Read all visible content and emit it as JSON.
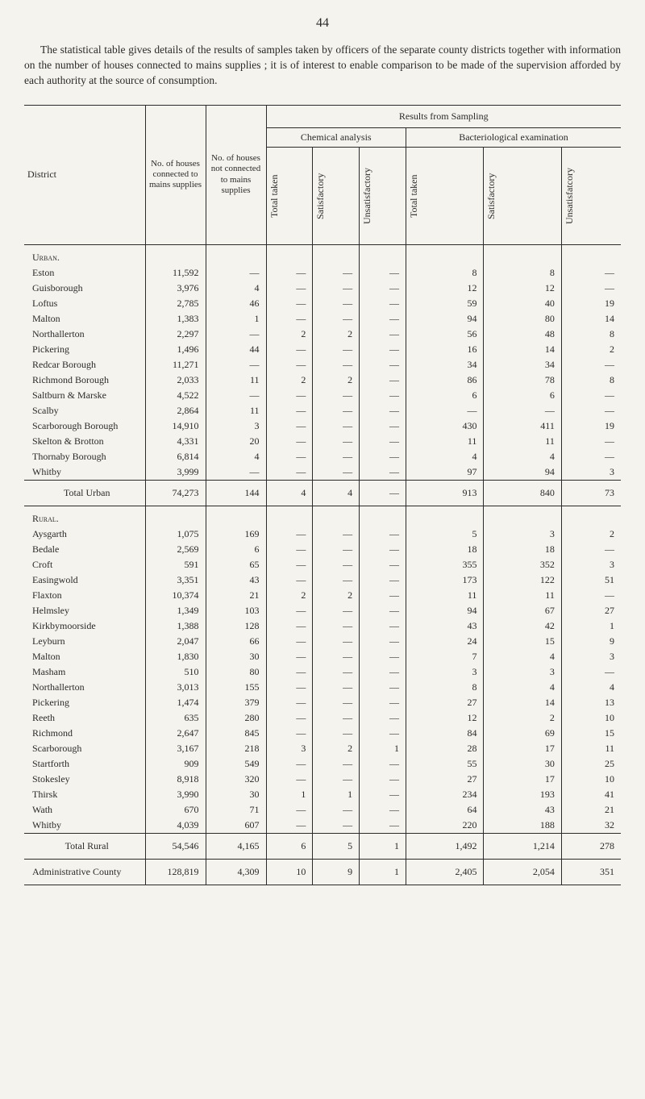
{
  "page_number": "44",
  "intro_text": "The statistical table gives details of the results of samples taken by officers of the separate county districts together with information on the number of houses connected to mains supplies ; it is of interest to enable comparison to be made of the supervision afforded by each authority at the source of consumption.",
  "table": {
    "headers": {
      "district": "District",
      "houses_connected": "No. of houses connected to mains supplies",
      "houses_not_connected": "No. of houses not connected to mains supplies",
      "results_sampling": "Results from Sampling",
      "chemical_analysis": "Chemical analysis",
      "bacteriological_examination": "Bacteriological examination",
      "total_taken": "Total taken",
      "satisfactory": "Satisfactory",
      "unsatisfactory": "Unsatisfactory",
      "unsatisfatcory": "Unsatisfatcory"
    },
    "sections": {
      "urban": "Urban.",
      "rural": "Rural.",
      "total_urban": "Total Urban",
      "total_rural": "Total Rural",
      "admin_county": "Administrative County"
    },
    "urban_rows": [
      {
        "district": "Eston",
        "hc": "11,592",
        "hnc": "—",
        "ca_tt": "—",
        "ca_s": "—",
        "ca_u": "—",
        "be_tt": "8",
        "be_s": "8",
        "be_u": "—"
      },
      {
        "district": "Guisborough",
        "hc": "3,976",
        "hnc": "4",
        "ca_tt": "—",
        "ca_s": "—",
        "ca_u": "—",
        "be_tt": "12",
        "be_s": "12",
        "be_u": "—"
      },
      {
        "district": "Loftus",
        "hc": "2,785",
        "hnc": "46",
        "ca_tt": "—",
        "ca_s": "—",
        "ca_u": "—",
        "be_tt": "59",
        "be_s": "40",
        "be_u": "19"
      },
      {
        "district": "Malton",
        "hc": "1,383",
        "hnc": "1",
        "ca_tt": "—",
        "ca_s": "—",
        "ca_u": "—",
        "be_tt": "94",
        "be_s": "80",
        "be_u": "14"
      },
      {
        "district": "Northallerton",
        "hc": "2,297",
        "hnc": "—",
        "ca_tt": "2",
        "ca_s": "2",
        "ca_u": "—",
        "be_tt": "56",
        "be_s": "48",
        "be_u": "8"
      },
      {
        "district": "Pickering",
        "hc": "1,496",
        "hnc": "44",
        "ca_tt": "—",
        "ca_s": "—",
        "ca_u": "—",
        "be_tt": "16",
        "be_s": "14",
        "be_u": "2"
      },
      {
        "district": "Redcar Borough",
        "hc": "11,271",
        "hnc": "—",
        "ca_tt": "—",
        "ca_s": "—",
        "ca_u": "—",
        "be_tt": "34",
        "be_s": "34",
        "be_u": "—"
      },
      {
        "district": "Richmond Borough",
        "hc": "2,033",
        "hnc": "11",
        "ca_tt": "2",
        "ca_s": "2",
        "ca_u": "—",
        "be_tt": "86",
        "be_s": "78",
        "be_u": "8"
      },
      {
        "district": "Saltburn & Marske",
        "hc": "4,522",
        "hnc": "—",
        "ca_tt": "—",
        "ca_s": "—",
        "ca_u": "—",
        "be_tt": "6",
        "be_s": "6",
        "be_u": "—"
      },
      {
        "district": "Scalby",
        "hc": "2,864",
        "hnc": "11",
        "ca_tt": "—",
        "ca_s": "—",
        "ca_u": "—",
        "be_tt": "—",
        "be_s": "—",
        "be_u": "—"
      },
      {
        "district": "Scarborough Borough",
        "hc": "14,910",
        "hnc": "3",
        "ca_tt": "—",
        "ca_s": "—",
        "ca_u": "—",
        "be_tt": "430",
        "be_s": "411",
        "be_u": "19"
      },
      {
        "district": "Skelton & Brotton",
        "hc": "4,331",
        "hnc": "20",
        "ca_tt": "—",
        "ca_s": "—",
        "ca_u": "—",
        "be_tt": "11",
        "be_s": "11",
        "be_u": "—"
      },
      {
        "district": "Thornaby Borough",
        "hc": "6,814",
        "hnc": "4",
        "ca_tt": "—",
        "ca_s": "—",
        "ca_u": "—",
        "be_tt": "4",
        "be_s": "4",
        "be_u": "—"
      },
      {
        "district": "Whitby",
        "hc": "3,999",
        "hnc": "—",
        "ca_tt": "—",
        "ca_s": "—",
        "ca_u": "—",
        "be_tt": "97",
        "be_s": "94",
        "be_u": "3"
      }
    ],
    "total_urban_row": {
      "hc": "74,273",
      "hnc": "144",
      "ca_tt": "4",
      "ca_s": "4",
      "ca_u": "—",
      "be_tt": "913",
      "be_s": "840",
      "be_u": "73"
    },
    "rural_rows": [
      {
        "district": "Aysgarth",
        "hc": "1,075",
        "hnc": "169",
        "ca_tt": "—",
        "ca_s": "—",
        "ca_u": "—",
        "be_tt": "5",
        "be_s": "3",
        "be_u": "2"
      },
      {
        "district": "Bedale",
        "hc": "2,569",
        "hnc": "6",
        "ca_tt": "—",
        "ca_s": "—",
        "ca_u": "—",
        "be_tt": "18",
        "be_s": "18",
        "be_u": "—"
      },
      {
        "district": "Croft",
        "hc": "591",
        "hnc": "65",
        "ca_tt": "—",
        "ca_s": "—",
        "ca_u": "—",
        "be_tt": "355",
        "be_s": "352",
        "be_u": "3"
      },
      {
        "district": "Easingwold",
        "hc": "3,351",
        "hnc": "43",
        "ca_tt": "—",
        "ca_s": "—",
        "ca_u": "—",
        "be_tt": "173",
        "be_s": "122",
        "be_u": "51"
      },
      {
        "district": "Flaxton",
        "hc": "10,374",
        "hnc": "21",
        "ca_tt": "2",
        "ca_s": "2",
        "ca_u": "—",
        "be_tt": "11",
        "be_s": "11",
        "be_u": "—"
      },
      {
        "district": "Helmsley",
        "hc": "1,349",
        "hnc": "103",
        "ca_tt": "—",
        "ca_s": "—",
        "ca_u": "—",
        "be_tt": "94",
        "be_s": "67",
        "be_u": "27"
      },
      {
        "district": "Kirkbymoorside",
        "hc": "1,388",
        "hnc": "128",
        "ca_tt": "—",
        "ca_s": "—",
        "ca_u": "—",
        "be_tt": "43",
        "be_s": "42",
        "be_u": "1"
      },
      {
        "district": "Leyburn",
        "hc": "2,047",
        "hnc": "66",
        "ca_tt": "—",
        "ca_s": "—",
        "ca_u": "—",
        "be_tt": "24",
        "be_s": "15",
        "be_u": "9"
      },
      {
        "district": "Malton",
        "hc": "1,830",
        "hnc": "30",
        "ca_tt": "—",
        "ca_s": "—",
        "ca_u": "—",
        "be_tt": "7",
        "be_s": "4",
        "be_u": "3"
      },
      {
        "district": "Masham",
        "hc": "510",
        "hnc": "80",
        "ca_tt": "—",
        "ca_s": "—",
        "ca_u": "—",
        "be_tt": "3",
        "be_s": "3",
        "be_u": "—"
      },
      {
        "district": "Northallerton",
        "hc": "3,013",
        "hnc": "155",
        "ca_tt": "—",
        "ca_s": "—",
        "ca_u": "—",
        "be_tt": "8",
        "be_s": "4",
        "be_u": "4"
      },
      {
        "district": "Pickering",
        "hc": "1,474",
        "hnc": "379",
        "ca_tt": "—",
        "ca_s": "—",
        "ca_u": "—",
        "be_tt": "27",
        "be_s": "14",
        "be_u": "13"
      },
      {
        "district": "Reeth",
        "hc": "635",
        "hnc": "280",
        "ca_tt": "—",
        "ca_s": "—",
        "ca_u": "—",
        "be_tt": "12",
        "be_s": "2",
        "be_u": "10"
      },
      {
        "district": "Richmond",
        "hc": "2,647",
        "hnc": "845",
        "ca_tt": "—",
        "ca_s": "—",
        "ca_u": "—",
        "be_tt": "84",
        "be_s": "69",
        "be_u": "15"
      },
      {
        "district": "Scarborough",
        "hc": "3,167",
        "hnc": "218",
        "ca_tt": "3",
        "ca_s": "2",
        "ca_u": "1",
        "be_tt": "28",
        "be_s": "17",
        "be_u": "11"
      },
      {
        "district": "Startforth",
        "hc": "909",
        "hnc": "549",
        "ca_tt": "—",
        "ca_s": "—",
        "ca_u": "—",
        "be_tt": "55",
        "be_s": "30",
        "be_u": "25"
      },
      {
        "district": "Stokesley",
        "hc": "8,918",
        "hnc": "320",
        "ca_tt": "—",
        "ca_s": "—",
        "ca_u": "—",
        "be_tt": "27",
        "be_s": "17",
        "be_u": "10"
      },
      {
        "district": "Thirsk",
        "hc": "3,990",
        "hnc": "30",
        "ca_tt": "1",
        "ca_s": "1",
        "ca_u": "—",
        "be_tt": "234",
        "be_s": "193",
        "be_u": "41"
      },
      {
        "district": "Wath",
        "hc": "670",
        "hnc": "71",
        "ca_tt": "—",
        "ca_s": "—",
        "ca_u": "—",
        "be_tt": "64",
        "be_s": "43",
        "be_u": "21"
      },
      {
        "district": "Whitby",
        "hc": "4,039",
        "hnc": "607",
        "ca_tt": "—",
        "ca_s": "—",
        "ca_u": "—",
        "be_tt": "220",
        "be_s": "188",
        "be_u": "32"
      }
    ],
    "total_rural_row": {
      "hc": "54,546",
      "hnc": "4,165",
      "ca_tt": "6",
      "ca_s": "5",
      "ca_u": "1",
      "be_tt": "1,492",
      "be_s": "1,214",
      "be_u": "278"
    },
    "admin_county_row": {
      "hc": "128,819",
      "hnc": "4,309",
      "ca_tt": "10",
      "ca_s": "9",
      "ca_u": "1",
      "be_tt": "2,405",
      "be_s": "2,054",
      "be_u": "351"
    }
  }
}
